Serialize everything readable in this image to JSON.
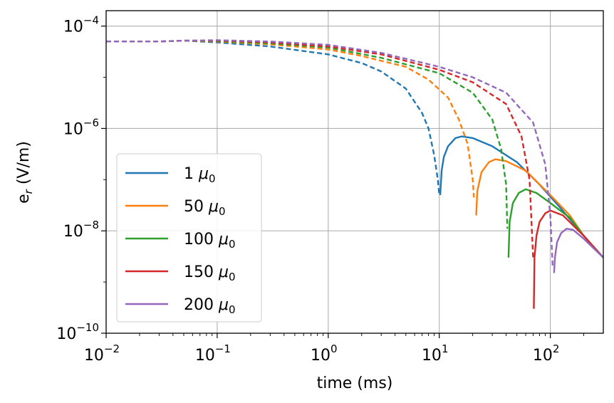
{
  "chart_data": {
    "type": "line",
    "title": "",
    "xlabel": "time (ms)",
    "ylabel_main": "e",
    "ylabel_sub": "r",
    "ylabel_unit": " (V/m)",
    "xscale": "log",
    "yscale": "log",
    "xlim": [
      0.01,
      300
    ],
    "ylim": [
      1e-10,
      0.0002
    ],
    "grid": true,
    "legend_position": "lower-left",
    "mu_symbol": "μ",
    "mu_sub": "0",
    "x_ticks": [
      {
        "value": 0.01,
        "base": "10",
        "exp": "−2"
      },
      {
        "value": 0.1,
        "base": "10",
        "exp": "−1"
      },
      {
        "value": 1,
        "base": "10",
        "exp": "0"
      },
      {
        "value": 10,
        "base": "10",
        "exp": "1"
      },
      {
        "value": 100,
        "base": "10",
        "exp": "2"
      }
    ],
    "y_ticks": [
      {
        "value": 1e-10,
        "base": "10",
        "exp": "−10"
      },
      {
        "value": 1e-08,
        "base": "10",
        "exp": "−8"
      },
      {
        "value": 1e-06,
        "base": "10",
        "exp": "−6"
      },
      {
        "value": 0.0001,
        "base": "10",
        "exp": "−4"
      }
    ],
    "line_styles": {
      "negative": "dashed",
      "positive": "solid"
    },
    "series": [
      {
        "name": "1",
        "color": "#1f77b4",
        "negative": [
          [
            0.01,
            5e-05
          ],
          [
            0.03,
            5e-05
          ],
          [
            0.05,
            5.2e-05
          ],
          [
            0.1,
            4.8e-05
          ],
          [
            0.3,
            4e-05
          ],
          [
            1,
            2.8e-05
          ],
          [
            2,
            1.9e-05
          ],
          [
            3,
            1.3e-05
          ],
          [
            5,
            6e-06
          ],
          [
            7,
            2e-06
          ],
          [
            8,
            1e-06
          ],
          [
            9,
            3e-07
          ],
          [
            9.7,
            1e-07
          ],
          [
            10,
            5e-08
          ]
        ],
        "positive": [
          [
            10.2,
            5e-08
          ],
          [
            10.5,
            1.5e-07
          ],
          [
            11,
            2.8e-07
          ],
          [
            12,
            4.5e-07
          ],
          [
            14,
            6.5e-07
          ],
          [
            16,
            7e-07
          ],
          [
            20,
            6.5e-07
          ],
          [
            30,
            4.5e-07
          ],
          [
            50,
            2.2e-07
          ],
          [
            80,
            8e-08
          ],
          [
            120,
            3e-08
          ],
          [
            200,
            8e-09
          ],
          [
            300,
            3e-09
          ]
        ]
      },
      {
        "name": "50",
        "color": "#ff7f0e",
        "negative": [
          [
            0.01,
            5e-05
          ],
          [
            0.03,
            5e-05
          ],
          [
            0.05,
            5.2e-05
          ],
          [
            0.1,
            5e-05
          ],
          [
            0.3,
            4.4e-05
          ],
          [
            1,
            3.5e-05
          ],
          [
            2,
            2.6e-05
          ],
          [
            5,
            1.6e-05
          ],
          [
            8,
            9e-06
          ],
          [
            12,
            4e-06
          ],
          [
            15,
            1.5e-06
          ],
          [
            18,
            5e-07
          ],
          [
            20,
            1e-07
          ],
          [
            20.5,
            4.5e-08
          ]
        ],
        "positive": [
          [
            21.5,
            2e-08
          ],
          [
            22,
            6e-08
          ],
          [
            24,
            1.4e-07
          ],
          [
            28,
            2.2e-07
          ],
          [
            32,
            2.5e-07
          ],
          [
            40,
            2.3e-07
          ],
          [
            60,
            1.5e-07
          ],
          [
            100,
            5e-08
          ],
          [
            150,
            2e-08
          ],
          [
            200,
            8e-09
          ],
          [
            300,
            3e-09
          ]
        ]
      },
      {
        "name": "100",
        "color": "#2ca02c",
        "negative": [
          [
            0.01,
            5e-05
          ],
          [
            0.03,
            5e-05
          ],
          [
            0.05,
            5.2e-05
          ],
          [
            0.1,
            5.1e-05
          ],
          [
            0.3,
            4.6e-05
          ],
          [
            1,
            3.8e-05
          ],
          [
            3,
            2.4e-05
          ],
          [
            10,
            1.2e-05
          ],
          [
            20,
            5e-06
          ],
          [
            30,
            1.5e-06
          ],
          [
            36,
            4e-07
          ],
          [
            40,
            8e-08
          ],
          [
            41,
            1.1e-08
          ]
        ],
        "positive": [
          [
            42,
            3e-09
          ],
          [
            43,
            1.5e-08
          ],
          [
            46,
            3.5e-08
          ],
          [
            52,
            5.5e-08
          ],
          [
            60,
            6.5e-08
          ],
          [
            75,
            5.5e-08
          ],
          [
            100,
            3.5e-08
          ],
          [
            150,
            1.8e-08
          ],
          [
            200,
            8e-09
          ],
          [
            300,
            3e-09
          ]
        ]
      },
      {
        "name": "150",
        "color": "#d62728",
        "negative": [
          [
            0.01,
            5e-05
          ],
          [
            0.03,
            5e-05
          ],
          [
            0.05,
            5.2e-05
          ],
          [
            0.1,
            5.2e-05
          ],
          [
            0.3,
            4.8e-05
          ],
          [
            1,
            4e-05
          ],
          [
            3,
            2.8e-05
          ],
          [
            10,
            1.4e-05
          ],
          [
            20,
            8e-06
          ],
          [
            40,
            3e-06
          ],
          [
            55,
            7e-07
          ],
          [
            65,
            1e-07
          ],
          [
            70,
            3e-09
          ]
        ],
        "positive": [
          [
            71,
            3e-10
          ],
          [
            72,
            3e-09
          ],
          [
            75,
            8e-09
          ],
          [
            80,
            1.5e-08
          ],
          [
            90,
            2.2e-08
          ],
          [
            100,
            2.5e-08
          ],
          [
            130,
            2e-08
          ],
          [
            200,
            8e-09
          ],
          [
            300,
            3e-09
          ]
        ]
      },
      {
        "name": "200",
        "color": "#9467bd",
        "negative": [
          [
            0.01,
            5e-05
          ],
          [
            0.03,
            5e-05
          ],
          [
            0.05,
            5.2e-05
          ],
          [
            0.1,
            5.3e-05
          ],
          [
            0.3,
            5e-05
          ],
          [
            1,
            4.3e-05
          ],
          [
            3,
            3e-05
          ],
          [
            10,
            1.6e-05
          ],
          [
            20,
            1e-05
          ],
          [
            40,
            5e-06
          ],
          [
            70,
            1.3e-06
          ],
          [
            90,
            2e-07
          ],
          [
            100,
            2e-08
          ],
          [
            105,
            2e-09
          ]
        ],
        "positive": [
          [
            108,
            1.5e-09
          ],
          [
            110,
            3e-09
          ],
          [
            115,
            6e-09
          ],
          [
            125,
            9e-09
          ],
          [
            140,
            1.1e-08
          ],
          [
            160,
            1.05e-08
          ],
          [
            200,
            7e-09
          ],
          [
            300,
            3e-09
          ]
        ]
      }
    ]
  }
}
